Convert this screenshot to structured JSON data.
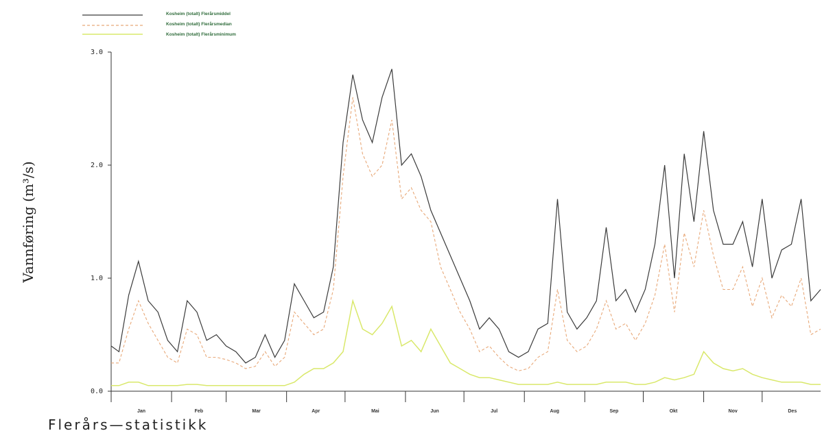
{
  "chart_data": {
    "type": "line",
    "ylabel": "Vannføring (m³/s)",
    "ylim": [
      0,
      3
    ],
    "yticks": [
      "0.0",
      "1.0",
      "2.0",
      "3.0"
    ],
    "months": [
      "Jan",
      "Feb",
      "Mar",
      "Apr",
      "Mai",
      "Jun",
      "Jul",
      "Aug",
      "Sep",
      "Okt",
      "Nov",
      "Des"
    ],
    "legend_placement": "top-left",
    "caption": "Flerårs—statistikk",
    "series": [
      {
        "name": "Kosheim (totalt) Flerårsmiddel",
        "color": "#3a3a3a",
        "style": "solid",
        "x": [
          1,
          5,
          10,
          15,
          20,
          25,
          30,
          35,
          40,
          45,
          50,
          55,
          60,
          65,
          70,
          75,
          80,
          85,
          90,
          95,
          100,
          105,
          110,
          115,
          120,
          125,
          130,
          135,
          140,
          145,
          150,
          155,
          160,
          165,
          170,
          175,
          180,
          185,
          190,
          195,
          200,
          205,
          210,
          215,
          220,
          225,
          230,
          235,
          240,
          245,
          250,
          255,
          260,
          265,
          270,
          275,
          280,
          285,
          290,
          295,
          300,
          305,
          310,
          315,
          320,
          325,
          330,
          335,
          340,
          345,
          350,
          355,
          360,
          365
        ],
        "values": [
          0.4,
          0.35,
          0.85,
          1.15,
          0.8,
          0.7,
          0.45,
          0.35,
          0.8,
          0.7,
          0.45,
          0.5,
          0.4,
          0.35,
          0.25,
          0.3,
          0.5,
          0.3,
          0.45,
          0.95,
          0.8,
          0.65,
          0.7,
          1.1,
          2.2,
          2.8,
          2.4,
          2.2,
          2.6,
          2.85,
          2.0,
          2.1,
          1.9,
          1.6,
          1.4,
          1.2,
          1.0,
          0.8,
          0.55,
          0.65,
          0.55,
          0.35,
          0.3,
          0.35,
          0.55,
          0.6,
          1.7,
          0.7,
          0.55,
          0.65,
          0.8,
          1.45,
          0.8,
          0.9,
          0.7,
          0.9,
          1.3,
          2.0,
          1.0,
          2.1,
          1.5,
          2.3,
          1.6,
          1.3,
          1.3,
          1.5,
          1.1,
          1.7,
          1.0,
          1.25,
          1.3,
          1.7,
          0.8,
          0.9
        ]
      },
      {
        "name": "Kosheim (totalt) Flerårsmedian",
        "color": "#e8a878",
        "style": "dashed",
        "x": [
          1,
          5,
          10,
          15,
          20,
          25,
          30,
          35,
          40,
          45,
          50,
          55,
          60,
          65,
          70,
          75,
          80,
          85,
          90,
          95,
          100,
          105,
          110,
          115,
          120,
          125,
          130,
          135,
          140,
          145,
          150,
          155,
          160,
          165,
          170,
          175,
          180,
          185,
          190,
          195,
          200,
          205,
          210,
          215,
          220,
          225,
          230,
          235,
          240,
          245,
          250,
          255,
          260,
          265,
          270,
          275,
          280,
          285,
          290,
          295,
          300,
          305,
          310,
          315,
          320,
          325,
          330,
          335,
          340,
          345,
          350,
          355,
          360,
          365
        ],
        "values": [
          0.25,
          0.25,
          0.55,
          0.8,
          0.6,
          0.45,
          0.3,
          0.25,
          0.55,
          0.5,
          0.3,
          0.3,
          0.28,
          0.25,
          0.2,
          0.22,
          0.35,
          0.22,
          0.3,
          0.7,
          0.6,
          0.5,
          0.55,
          0.9,
          1.9,
          2.6,
          2.1,
          1.9,
          2.0,
          2.4,
          1.7,
          1.8,
          1.6,
          1.5,
          1.1,
          0.9,
          0.7,
          0.55,
          0.35,
          0.4,
          0.3,
          0.22,
          0.18,
          0.2,
          0.3,
          0.35,
          0.9,
          0.45,
          0.35,
          0.4,
          0.55,
          0.8,
          0.55,
          0.6,
          0.45,
          0.6,
          0.85,
          1.3,
          0.7,
          1.4,
          1.1,
          1.6,
          1.2,
          0.9,
          0.9,
          1.1,
          0.75,
          1.0,
          0.65,
          0.85,
          0.75,
          1.0,
          0.5,
          0.55
        ]
      },
      {
        "name": "Kosheim (totalt) Flerårsminimum",
        "color": "#d9e86a",
        "style": "solid",
        "x": [
          1,
          5,
          10,
          15,
          20,
          25,
          30,
          35,
          40,
          45,
          50,
          55,
          60,
          65,
          70,
          75,
          80,
          85,
          90,
          95,
          100,
          105,
          110,
          115,
          120,
          125,
          130,
          135,
          140,
          145,
          150,
          155,
          160,
          165,
          170,
          175,
          180,
          185,
          190,
          195,
          200,
          205,
          210,
          215,
          220,
          225,
          230,
          235,
          240,
          245,
          250,
          255,
          260,
          265,
          270,
          275,
          280,
          285,
          290,
          295,
          300,
          305,
          310,
          315,
          320,
          325,
          330,
          335,
          340,
          345,
          350,
          355,
          360,
          365
        ],
        "values": [
          0.05,
          0.05,
          0.08,
          0.08,
          0.05,
          0.05,
          0.05,
          0.05,
          0.06,
          0.06,
          0.05,
          0.05,
          0.05,
          0.05,
          0.05,
          0.05,
          0.05,
          0.05,
          0.05,
          0.08,
          0.15,
          0.2,
          0.2,
          0.25,
          0.35,
          0.8,
          0.55,
          0.5,
          0.6,
          0.75,
          0.4,
          0.45,
          0.35,
          0.55,
          0.4,
          0.25,
          0.2,
          0.15,
          0.12,
          0.12,
          0.1,
          0.08,
          0.06,
          0.06,
          0.06,
          0.06,
          0.08,
          0.06,
          0.06,
          0.06,
          0.06,
          0.08,
          0.08,
          0.08,
          0.06,
          0.06,
          0.08,
          0.12,
          0.1,
          0.12,
          0.15,
          0.35,
          0.25,
          0.2,
          0.18,
          0.2,
          0.15,
          0.12,
          0.1,
          0.08,
          0.08,
          0.08,
          0.06,
          0.06
        ]
      }
    ]
  }
}
